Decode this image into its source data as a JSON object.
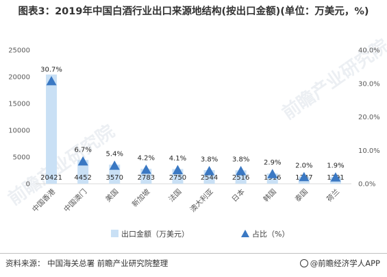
{
  "title": "图表3：2019年中国白酒行业出口来源地结构(按出口金额)(单位：万美元，%)",
  "source": "资料来源：  中国海关总署 前瞻产业研究院整理",
  "brand": "@前瞻经济学人APP",
  "watermarks": [
    "前瞻产业研究院",
    "前瞻产业研究院"
  ],
  "colors": {
    "bar": "#c9e0f5",
    "marker": "#3a78c3",
    "grid": "#d9d9d9"
  },
  "chart_data": {
    "type": "bar",
    "categories": [
      "中国香港",
      "中国澳门",
      "美国",
      "新加坡",
      "法国",
      "澳大利亚",
      "日本",
      "韩国",
      "泰国",
      "荷兰"
    ],
    "series": [
      {
        "name": "出口金额（万美元）",
        "type": "bar",
        "axis": "left",
        "values": [
          20421,
          4452,
          3570,
          2783,
          2750,
          2544,
          2516,
          1916,
          1347,
          1291
        ],
        "labels": [
          "20421",
          "4452",
          "3570",
          "2783",
          "2750",
          "2544",
          "2516",
          "1916",
          "1347",
          "1291"
        ]
      },
      {
        "name": "占比（%）",
        "type": "marker",
        "axis": "right",
        "values": [
          30.7,
          6.7,
          5.4,
          4.2,
          4.1,
          3.8,
          3.8,
          2.9,
          2.0,
          1.9
        ],
        "labels": [
          "30.7%",
          "6.7%",
          "5.4%",
          "4.2%",
          "4.1%",
          "3.8%",
          "3.8%",
          "2.9%",
          "2.0%",
          "1.9%"
        ]
      }
    ],
    "y_left": {
      "min": 0,
      "max": 25000,
      "ticks": [
        0,
        5000,
        10000,
        15000,
        20000,
        25000
      ],
      "tick_labels": [
        "0",
        "5000",
        "10000",
        "15000",
        "20000",
        "25000"
      ]
    },
    "y_right": {
      "min": 0,
      "max": 40,
      "ticks": [
        0,
        10,
        20,
        30,
        40
      ],
      "tick_labels": [
        "0.0%",
        "10.0%",
        "20.0%",
        "30.0%",
        "40.0%"
      ]
    },
    "legend": {
      "position": "bottom",
      "items": [
        "出口金额（万美元）",
        "占比（%）"
      ]
    },
    "grid": false
  }
}
